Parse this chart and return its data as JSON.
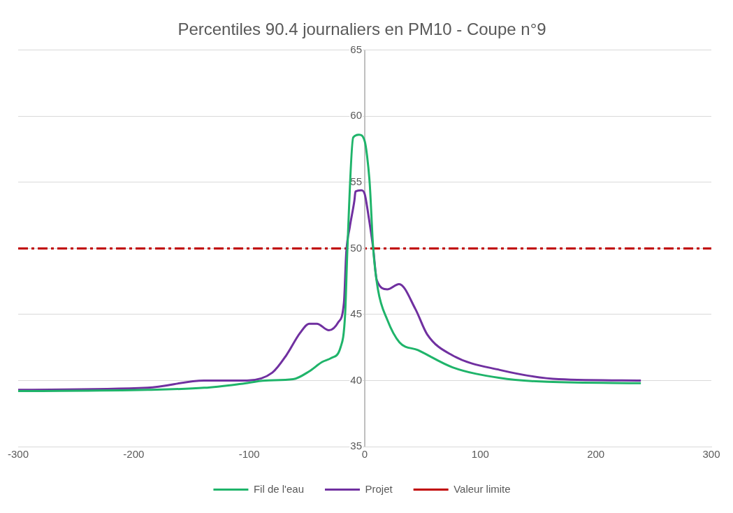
{
  "chart_data": {
    "type": "line",
    "title": "Percentiles 90.4 journaliers en PM10 - Coupe n°9",
    "xlim": [
      -300,
      300
    ],
    "xticks": [
      -300,
      -200,
      -100,
      0,
      100,
      200,
      300
    ],
    "ylim": [
      35,
      65
    ],
    "yticks": [
      35,
      40,
      45,
      50,
      55,
      60,
      65
    ],
    "grid": "y",
    "legend": "bottom",
    "marker": "none",
    "line_style": "solid",
    "series": [
      {
        "name": "Fil de l'eau",
        "color": "#1fb46a",
        "x": [
          -300,
          -188,
          -139,
          -107,
          -86,
          -62,
          -48,
          -37,
          -29,
          -21,
          -17,
          -15,
          -10,
          -5,
          0,
          2,
          4.3,
          7.3,
          11.4,
          19.5,
          30,
          46,
          76,
          117,
          158,
          239
        ],
        "values": [
          39.2,
          39.3,
          39.45,
          39.75,
          40.0,
          40.1,
          40.7,
          41.4,
          41.7,
          42.5,
          45,
          50,
          58.4,
          58.6,
          58.1,
          57,
          54.9,
          50,
          46.9,
          44.6,
          42.9,
          42.3,
          41,
          40.2,
          39.9,
          39.8
        ]
      },
      {
        "name": "Projet",
        "color": "#7030a0",
        "x": [
          -300,
          -188,
          -139,
          -102,
          -80,
          -68,
          -56,
          -48,
          -41.5,
          -31,
          -23,
          -18,
          -16,
          -13,
          -9,
          -8,
          -3,
          0,
          3,
          7.3,
          10.4,
          19.5,
          29.7,
          43.9,
          54,
          76,
          117,
          168,
          239
        ],
        "values": [
          39.3,
          39.45,
          40.0,
          40.0,
          40.6,
          41.9,
          43.6,
          44.3,
          44.3,
          43.8,
          44.4,
          45.9,
          49.7,
          51.6,
          53.6,
          54.3,
          54.4,
          54.1,
          52.6,
          50,
          47.6,
          46.9,
          47.3,
          45.4,
          43.5,
          41.9,
          40.8,
          40.1,
          40.0
        ]
      }
    ],
    "ref_lines": [
      {
        "axis": "y",
        "value": 50,
        "label": "Valeur limite",
        "color": "#c00000",
        "line_style": "dashed"
      }
    ]
  }
}
